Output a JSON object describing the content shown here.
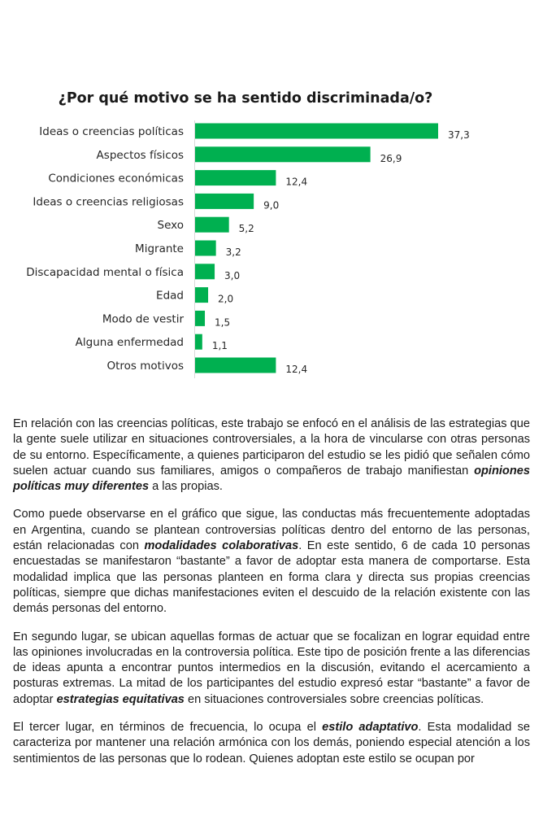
{
  "chart_data": {
    "type": "bar",
    "orientation": "horizontal",
    "title": "¿Por qué motivo se ha sentido discriminada/o?",
    "categories": [
      "Ideas o creencias políticas",
      "Aspectos físicos",
      "Condiciones económicas",
      "Ideas o creencias religiosas",
      "Sexo",
      "Migrante",
      "Discapacidad mental o física",
      "Edad",
      "Modo de vestir",
      "Alguna enfermedad",
      "Otros motivos"
    ],
    "values": [
      37.3,
      26.9,
      12.4,
      9.0,
      5.2,
      3.2,
      3.0,
      2.0,
      1.5,
      1.1,
      12.4
    ],
    "data_labels": [
      "37,3",
      "26,9",
      "12,4",
      "9,0",
      "5,2",
      "3,2",
      "3,0",
      "2,0",
      "1,5",
      "1,1",
      "12,4"
    ],
    "xlabel": "",
    "ylabel": "",
    "grid": false,
    "legend": "none",
    "color": "#00b050"
  },
  "paragraphs": [
    [
      {
        "t": "En relación con las creencias políticas, este trabajo se enfocó en el análisis de las estrategias que la gente suele utilizar en situaciones controversiales, a la hora de vincularse con otras personas de su entorno. Específicamente, a quienes participaron del estudio se les pidió que señalen cómo suelen actuar cuando sus familiares, amigos o compañeros de trabajo manifiestan "
      },
      {
        "t": "opiniones políticas muy diferentes",
        "em": true
      },
      {
        "t": " a las propias."
      }
    ],
    [
      {
        "t": "Como puede observarse en el gráfico que sigue, las conductas más frecuentemente adoptadas en Argentina, cuando se plantean controversias políticas dentro del entorno de las personas, están relacionadas con "
      },
      {
        "t": "modalidades colaborativas",
        "em": true
      },
      {
        "t": ". En este sentido, 6 de cada 10 personas encuestadas se manifestaron “bastante” a favor de adoptar esta manera de comportarse. Esta modalidad implica que las personas planteen en forma clara y directa sus propias creencias políticas, siempre que dichas manifestaciones eviten el descuido de la relación existente con las demás personas del entorno."
      }
    ],
    [
      {
        "t": "En segundo lugar, se ubican aquellas formas de actuar que se focalizan en lograr equidad entre las opiniones involucradas en la controversia política. Este tipo de posición frente a las diferencias de ideas apunta a encontrar puntos intermedios en la discusión, evitando el acercamiento a posturas extremas. La mitad de los participantes del estudio expresó estar “bastante” a favor de adoptar "
      },
      {
        "t": "estrategias equitativas",
        "em": true
      },
      {
        "t": " en situaciones controversiales sobre creencias políticas."
      }
    ],
    [
      {
        "t": "El tercer lugar, en términos de frecuencia, lo ocupa el "
      },
      {
        "t": "estilo adaptativo",
        "em": true
      },
      {
        "t": ". Esta modalidad se caracteriza por mantener una relación armónica con los demás, poniendo especial atención a los sentimientos de las personas que lo rodean. Quienes adoptan este estilo se ocupan por"
      }
    ]
  ]
}
